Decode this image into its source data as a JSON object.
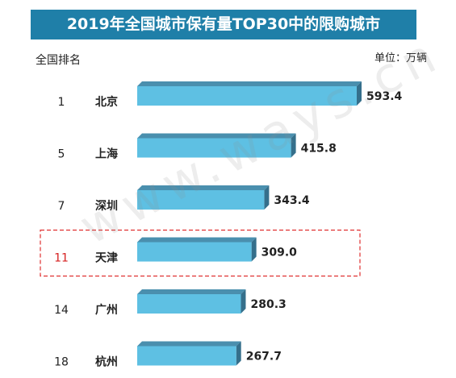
{
  "chart_data": {
    "type": "bar",
    "orientation": "horizontal",
    "title": "2019年全国城市保有量TOP30中的限购城市",
    "rank_header": "全国排名",
    "unit": "单位：万辆",
    "categories": [
      "北京",
      "上海",
      "深圳",
      "天津",
      "广州",
      "杭州"
    ],
    "ranks": [
      "1",
      "5",
      "7",
      "11",
      "14",
      "18"
    ],
    "values": [
      593.4,
      415.8,
      343.4,
      309.0,
      280.3,
      267.7
    ],
    "value_labels": [
      "593.4",
      "415.8",
      "343.4",
      "309.0",
      "280.3",
      "267.7"
    ],
    "highlight": "天津",
    "xlim": [
      0,
      593.4
    ],
    "grid": false,
    "legend": "none"
  },
  "watermark": "www.ways.cn",
  "colors": {
    "title_bg": "#1f7fa8",
    "bar_front": "#5ec0e3",
    "bar_top": "#4a8fae",
    "bar_side": "#356f8b",
    "highlight_rank": "#d62020",
    "highlight_box": "#e03030"
  }
}
